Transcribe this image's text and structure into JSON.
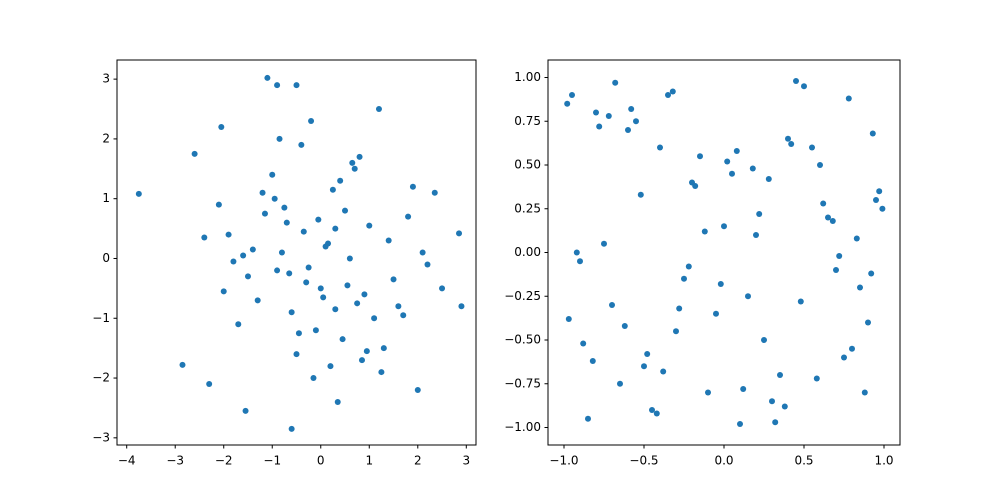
{
  "chart_data": [
    {
      "type": "scatter",
      "color": "#1f77b4",
      "xlim": [
        -4.2,
        3.2
      ],
      "ylim": [
        -3.12,
        3.32
      ],
      "xticks": [
        {
          "value": -4,
          "label": "−4"
        },
        {
          "value": -3,
          "label": "−3"
        },
        {
          "value": -2,
          "label": "−2"
        },
        {
          "value": -1,
          "label": "−1"
        },
        0,
        1,
        2,
        3
      ],
      "yticks": [
        {
          "value": -3,
          "label": "−3"
        },
        {
          "value": -2,
          "label": "−2"
        },
        {
          "value": -1,
          "label": "−1"
        },
        0,
        1,
        2,
        3
      ],
      "x": [
        -3.75,
        -1.1,
        -0.9,
        -0.5,
        -2.85,
        -0.6,
        2.85,
        2.9,
        2.35,
        -1.55,
        2.0,
        -2.3,
        1.2,
        -2.6,
        -2.05,
        0.1,
        -0.3,
        0.5,
        -0.8,
        0.9,
        -1.2,
        1.4,
        -0.1,
        0.3,
        -0.6,
        0.7,
        -1.5,
        1.8,
        -1.9,
        0.2,
        -0.4,
        1.1,
        -0.9,
        0.6,
        -0.2,
        0.0,
        0.4,
        -0.7,
        1.3,
        -1.3,
        2.2,
        -2.1,
        1.6,
        -1.7,
        0.8,
        -0.5,
        0.15,
        -0.25,
        0.55,
        -0.05,
        0.35,
        -1.0,
        1.0,
        -1.4,
        1.5,
        -0.35,
        0.75,
        -0.85,
        0.25,
        -0.15,
        1.9,
        -2.4,
        2.5,
        -1.8,
        0.45,
        -0.65,
        1.25,
        -1.15,
        0.05,
        0.65,
        -0.45,
        0.95,
        -0.95,
        1.7,
        -1.6,
        0.85,
        -0.75,
        2.1,
        -2.0,
        0.3
      ],
      "values": [
        1.08,
        3.02,
        2.9,
        2.9,
        -1.78,
        -2.85,
        0.42,
        -0.8,
        1.1,
        -2.55,
        -2.2,
        -2.1,
        2.5,
        1.75,
        2.2,
        0.2,
        -0.4,
        0.8,
        0.1,
        -0.6,
        1.1,
        0.3,
        -1.2,
        0.5,
        -0.9,
        1.5,
        -0.3,
        0.7,
        0.4,
        -1.8,
        1.9,
        -1.0,
        -0.2,
        0.0,
        2.3,
        -0.5,
        1.3,
        0.6,
        -1.5,
        -0.7,
        -0.1,
        0.9,
        -0.8,
        -1.1,
        1.7,
        -1.6,
        0.25,
        -0.15,
        -0.45,
        0.65,
        -2.4,
        1.4,
        0.55,
        0.15,
        -0.35,
        0.45,
        -0.75,
        2.0,
        1.15,
        -2.0,
        1.2,
        0.35,
        -0.5,
        -0.05,
        -1.35,
        -0.25,
        -1.9,
        0.75,
        -0.65,
        1.6,
        -1.25,
        -1.55,
        1.0,
        -0.95,
        0.05,
        -1.7,
        0.85,
        0.1,
        -0.55,
        -0.85
      ]
    },
    {
      "type": "scatter",
      "color": "#1f77b4",
      "xlim": [
        -1.1,
        1.1
      ],
      "ylim": [
        -1.1,
        1.1
      ],
      "xticks": [
        {
          "value": -1,
          "label": "−1.0"
        },
        {
          "value": -0.5,
          "label": "−0.5"
        },
        {
          "value": 0,
          "label": "0.0"
        },
        0.5,
        {
          "value": 1,
          "label": "1.0"
        }
      ],
      "yticks": [
        {
          "value": -1,
          "label": "−1.00"
        },
        {
          "value": -0.75,
          "label": "−0.75"
        },
        {
          "value": -0.5,
          "label": "−0.50"
        },
        {
          "value": -0.25,
          "label": "−0.25"
        },
        {
          "value": 0,
          "label": "0.00"
        },
        0.25,
        {
          "value": 0.5,
          "label": "0.50"
        },
        0.75,
        {
          "value": 1,
          "label": "1.00"
        }
      ],
      "x": [
        -0.95,
        -0.7,
        -0.4,
        -0.1,
        0.2,
        0.5,
        0.8,
        0.97,
        -0.85,
        -0.55,
        -0.25,
        0.05,
        0.35,
        0.65,
        0.9,
        -0.98,
        -0.75,
        -0.45,
        -0.15,
        0.15,
        0.45,
        0.75,
        0.95,
        -0.9,
        -0.6,
        -0.3,
        0.0,
        0.3,
        0.6,
        0.85,
        -0.8,
        -0.5,
        -0.2,
        0.1,
        0.4,
        0.7,
        0.99,
        -0.65,
        -0.35,
        -0.05,
        0.25,
        0.55,
        0.88,
        -0.92,
        -0.72,
        -0.42,
        -0.12,
        0.18,
        0.48,
        0.78,
        -0.82,
        -0.52,
        -0.22,
        0.08,
        0.38,
        0.68,
        0.93,
        -0.62,
        -0.32,
        -0.02,
        0.28,
        0.58,
        0.83,
        -0.88,
        -0.58,
        -0.28,
        0.02,
        0.32,
        0.62,
        0.92,
        -0.78,
        -0.48,
        -0.18,
        0.12,
        0.42,
        0.72,
        -0.97,
        -0.68,
        -0.38,
        0.22
      ],
      "values": [
        0.9,
        -0.3,
        0.6,
        -0.8,
        0.1,
        0.95,
        -0.55,
        0.35,
        -0.95,
        0.75,
        -0.15,
        0.45,
        -0.7,
        0.2,
        -0.4,
        0.85,
        0.05,
        -0.9,
        0.55,
        -0.25,
        0.98,
        -0.6,
        0.3,
        -0.05,
        0.7,
        -0.45,
        0.15,
        -0.85,
        0.5,
        -0.2,
        0.8,
        -0.65,
        0.4,
        -0.98,
        0.65,
        -0.1,
        0.25,
        -0.75,
        0.9,
        -0.35,
        -0.5,
        0.6,
        -0.8,
        0.0,
        0.78,
        -0.92,
        0.12,
        0.48,
        -0.28,
        0.88,
        -0.62,
        0.33,
        -0.08,
        0.58,
        -0.88,
        0.18,
        0.68,
        -0.42,
        0.92,
        -0.18,
        0.42,
        -0.72,
        0.08,
        -0.52,
        0.82,
        -0.32,
        0.52,
        -0.97,
        0.28,
        -0.12,
        0.72,
        -0.58,
        0.38,
        -0.78,
        0.62,
        -0.02,
        -0.38,
        0.97,
        -0.68,
        0.22
      ]
    }
  ]
}
